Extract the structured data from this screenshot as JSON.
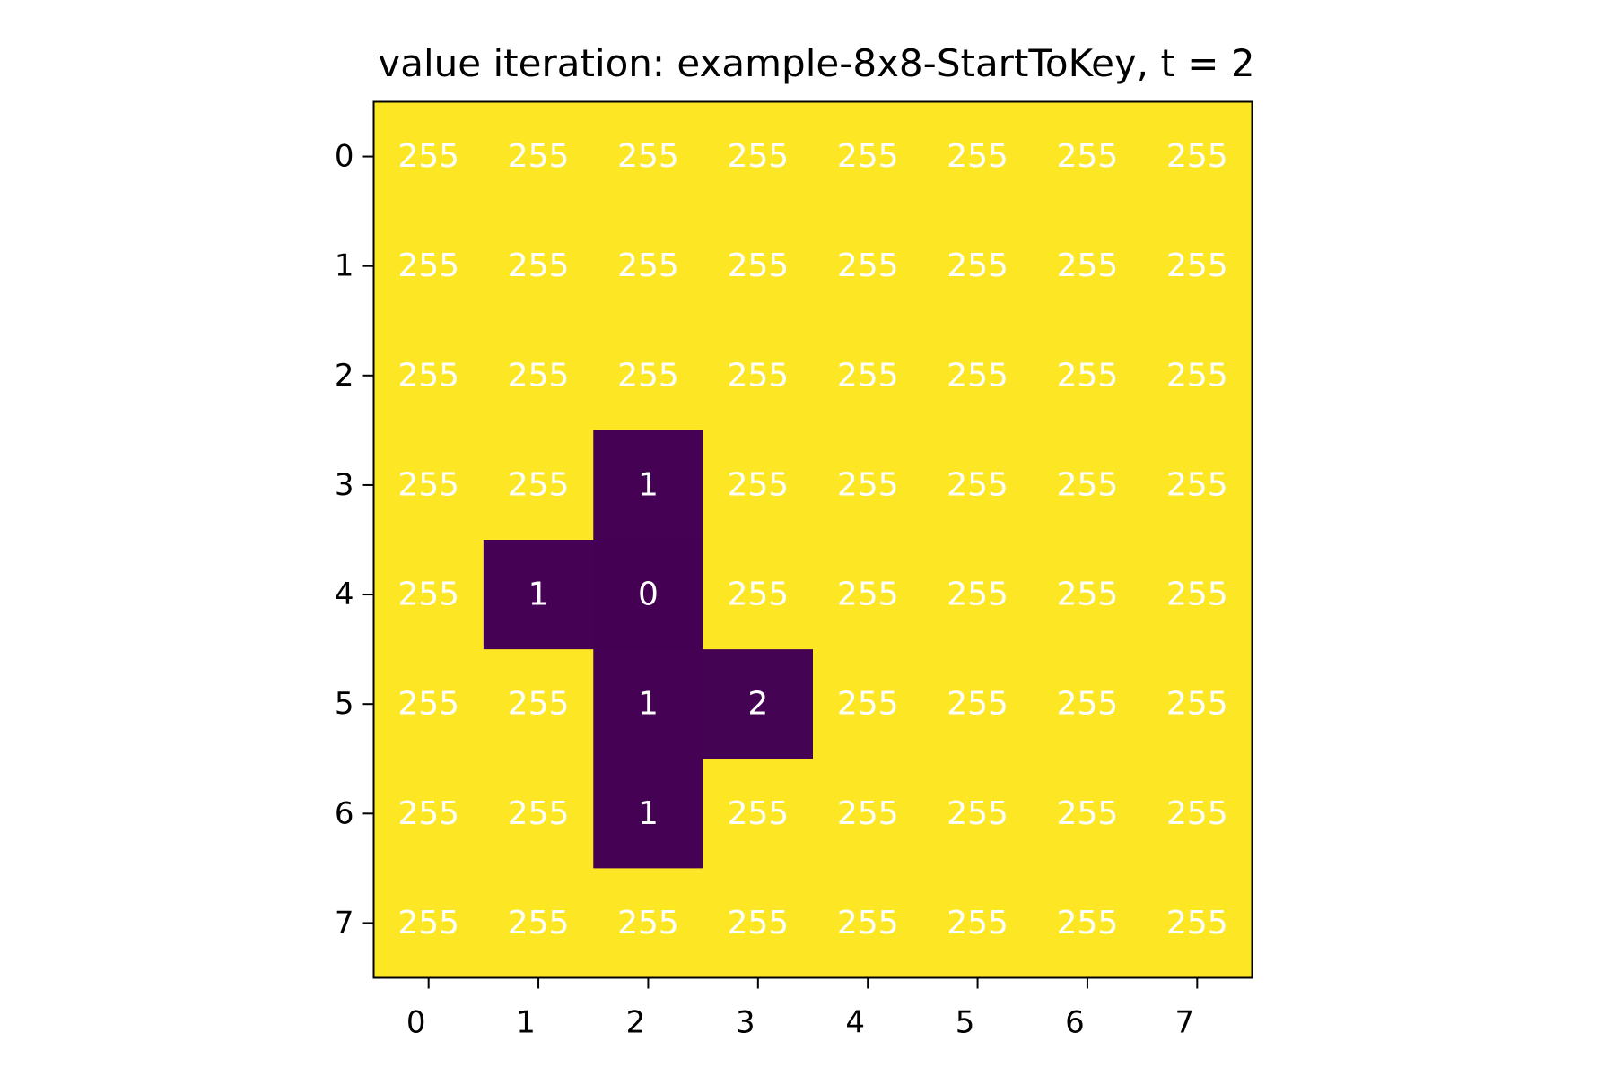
{
  "chart_data": {
    "type": "heatmap",
    "title": "value iteration: example-8x8-StartToKey, t = 2",
    "xlabel": "",
    "ylabel": "",
    "x_ticks": [
      "0",
      "1",
      "2",
      "3",
      "4",
      "5",
      "6",
      "7"
    ],
    "y_ticks": [
      "0",
      "1",
      "2",
      "3",
      "4",
      "5",
      "6",
      "7"
    ],
    "values": [
      [
        255,
        255,
        255,
        255,
        255,
        255,
        255,
        255
      ],
      [
        255,
        255,
        255,
        255,
        255,
        255,
        255,
        255
      ],
      [
        255,
        255,
        255,
        255,
        255,
        255,
        255,
        255
      ],
      [
        255,
        255,
        1,
        255,
        255,
        255,
        255,
        255
      ],
      [
        255,
        1,
        0,
        255,
        255,
        255,
        255,
        255
      ],
      [
        255,
        255,
        1,
        2,
        255,
        255,
        255,
        255
      ],
      [
        255,
        255,
        1,
        255,
        255,
        255,
        255,
        255
      ],
      [
        255,
        255,
        255,
        255,
        255,
        255,
        255,
        255
      ]
    ],
    "value_range": [
      0,
      255
    ],
    "colormap": "viridis",
    "colors": {
      "low": "#440154",
      "high": "#fde725",
      "cell_text": "#ffffff",
      "axis": "#000000"
    },
    "grid": false,
    "legend": "none"
  }
}
